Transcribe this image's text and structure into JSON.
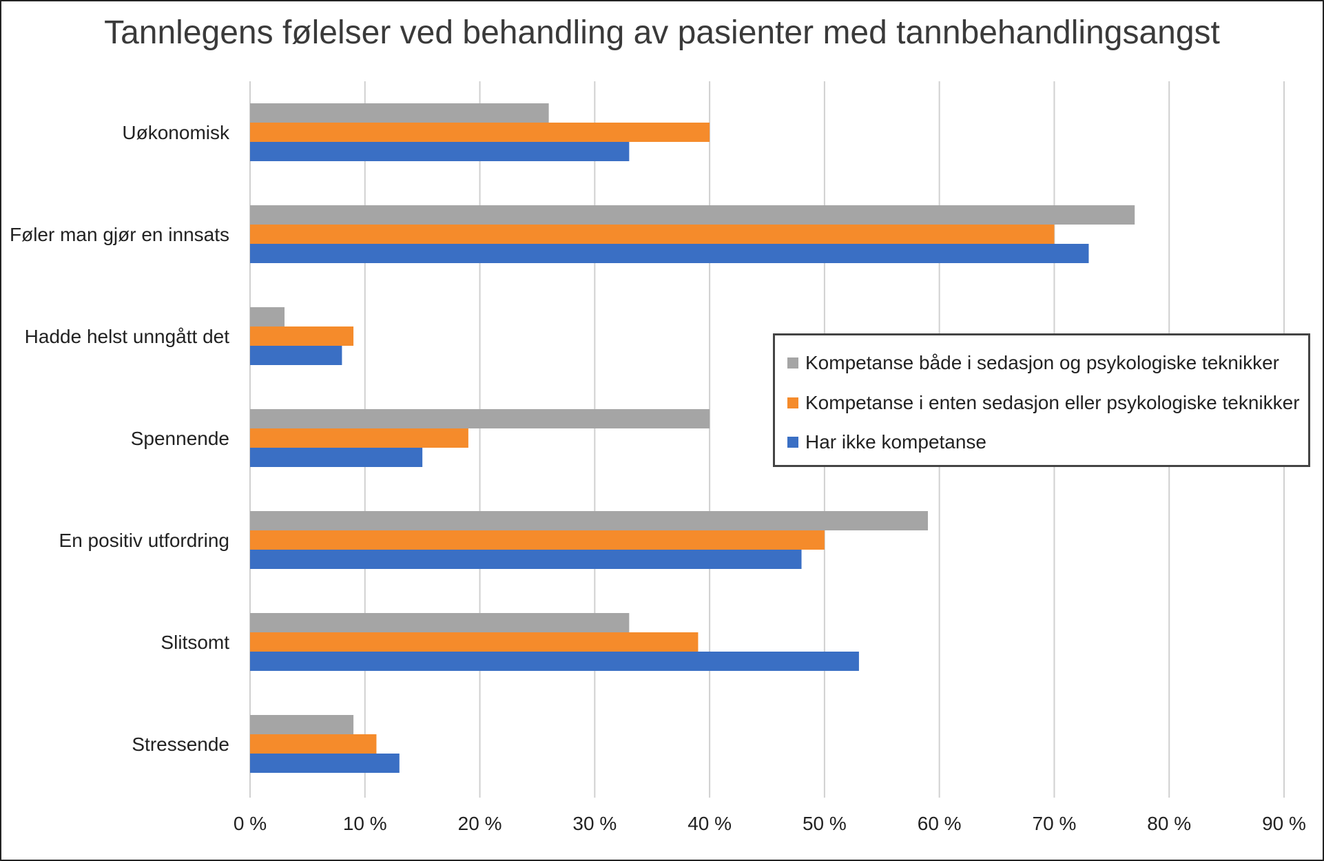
{
  "chart_data": {
    "type": "bar",
    "orientation": "horizontal",
    "title": "Tannlegens følelser ved behandling av pasienter med tannbehandlingsangst",
    "categories": [
      "Uøkonomisk",
      "Føler man gjør en innsats",
      "Hadde helst unngått det",
      "Spennende",
      "En positiv utfordring",
      "Slitsomt",
      "Stressende"
    ],
    "series": [
      {
        "name": "Kompetanse både i sedasjon og psykologiske teknikker",
        "color": "#a5a5a5",
        "values": [
          26,
          77,
          3,
          40,
          59,
          33,
          9
        ]
      },
      {
        "name": "Kompetanse i enten sedasjon eller psykologiske teknikker",
        "color": "#f58b2b",
        "values": [
          40,
          70,
          9,
          19,
          50,
          39,
          11
        ]
      },
      {
        "name": "Har ikke kompetanse",
        "color": "#3a6fc4",
        "values": [
          33,
          73,
          8,
          15,
          48,
          53,
          13
        ]
      }
    ],
    "xlim": [
      0,
      90
    ],
    "xticks": [
      "0 %",
      "10 %",
      "20 %",
      "30 %",
      "40 %",
      "50 %",
      "60 %",
      "70 %",
      "80 %",
      "90 %"
    ],
    "grid": true,
    "legend_position": "right"
  }
}
